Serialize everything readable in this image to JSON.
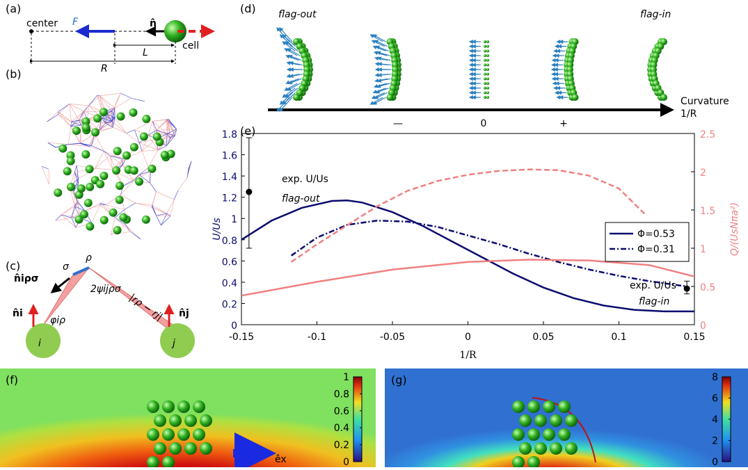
{
  "panels": {
    "a": {
      "label": "(a)",
      "center": "center",
      "force": "F",
      "normal": "n̂",
      "cell": "cell",
      "L": "L",
      "R": "R"
    },
    "b": {
      "label": "(b)"
    },
    "c": {
      "label": "(c)",
      "n_irs": "n̂iρσ",
      "sigma": "σ",
      "rho": "ρ",
      "r_diff": "|rρ − rj|",
      "n_i": "n̂i",
      "phi": "φiρ",
      "psi": "2ψijρσ",
      "n_j": "n̂j",
      "i": "i",
      "j": "j"
    },
    "d": {
      "label": "(d)",
      "left": "flag-out",
      "right": "flag-in",
      "axis_title": "Curvature",
      "axis_unit": "1/R",
      "marks": [
        "—",
        "0",
        "+"
      ]
    },
    "e": {
      "label": "(e)"
    },
    "f": {
      "label": "(f)",
      "direction": "êx",
      "colorbar": {
        "lim": [
          0,
          1
        ],
        "ticks": [
          0,
          0.2,
          0.4,
          0.6,
          0.8,
          1
        ]
      }
    },
    "g": {
      "label": "(g)",
      "colorbar": {
        "lim": [
          0,
          8
        ],
        "ticks": [
          0,
          2,
          4,
          6,
          8
        ]
      }
    }
  },
  "chart_data": {
    "type": "line",
    "xlabel": "1/R",
    "ylabel": "U/Us",
    "y2label": "Q/(UsNπa²)",
    "xlim": [
      -0.15,
      0.15
    ],
    "xticks": [
      -0.15,
      -0.1,
      -0.05,
      0,
      0.05,
      0.1,
      0.15
    ],
    "ylim": [
      0,
      1.8
    ],
    "yticks": [
      0,
      0.2,
      0.4,
      0.6,
      0.8,
      1,
      1.2,
      1.4,
      1.6,
      1.8
    ],
    "y2lim": [
      0,
      2.5
    ],
    "y2ticks": [
      0,
      0.5,
      1,
      1.5,
      2,
      2.5
    ],
    "legend": "right",
    "series": [
      {
        "name": "Φ=0.53",
        "color": "#0a0a6e",
        "style": "solid",
        "x": [
          -0.15,
          -0.13,
          -0.11,
          -0.09,
          -0.08,
          -0.07,
          -0.05,
          -0.03,
          -0.01,
          0.01,
          0.03,
          0.05,
          0.07,
          0.09,
          0.11,
          0.13,
          0.15
        ],
        "values": [
          0.8,
          0.98,
          1.1,
          1.165,
          1.17,
          1.15,
          1.06,
          0.93,
          0.78,
          0.63,
          0.48,
          0.35,
          0.25,
          0.18,
          0.14,
          0.125,
          0.125
        ]
      },
      {
        "name": "Φ=0.31",
        "color": "#0a0a6e",
        "style": "dashdot",
        "x": [
          -0.117,
          -0.1,
          -0.08,
          -0.06,
          -0.04,
          -0.02,
          0,
          0.02,
          0.04,
          0.06,
          0.08,
          0.1,
          0.12,
          0.145
        ],
        "values": [
          0.65,
          0.82,
          0.94,
          0.98,
          0.97,
          0.92,
          0.84,
          0.76,
          0.67,
          0.59,
          0.52,
          0.46,
          0.41,
          0.36
        ]
      },
      {
        "color": "#f08080",
        "style": "dashed",
        "axis": "y2",
        "x": [
          -0.117,
          -0.1,
          -0.08,
          -0.06,
          -0.04,
          -0.02,
          0,
          0.02,
          0.04,
          0.06,
          0.08,
          0.1,
          0.117
        ],
        "values": [
          0.82,
          1.05,
          1.3,
          1.55,
          1.75,
          1.88,
          1.96,
          2.01,
          2.03,
          2.02,
          1.95,
          1.78,
          1.45
        ]
      },
      {
        "color": "#f08080",
        "style": "solid",
        "axis": "y2",
        "x": [
          -0.15,
          -0.1,
          -0.05,
          0,
          0.04,
          0.08,
          0.12,
          0.15
        ],
        "values": [
          0.38,
          0.56,
          0.72,
          0.82,
          0.85,
          0.84,
          0.78,
          0.63
        ]
      }
    ],
    "error_points": {
      "x": [
        -0.145,
        0.145
      ],
      "values": [
        1.25,
        0.34
      ],
      "low": [
        0.72,
        0.29
      ],
      "high": [
        1.76,
        0.41
      ]
    },
    "annotations": [
      "exp. U/Us",
      "flag-out",
      "exp. U/Us",
      "flag-in"
    ]
  }
}
